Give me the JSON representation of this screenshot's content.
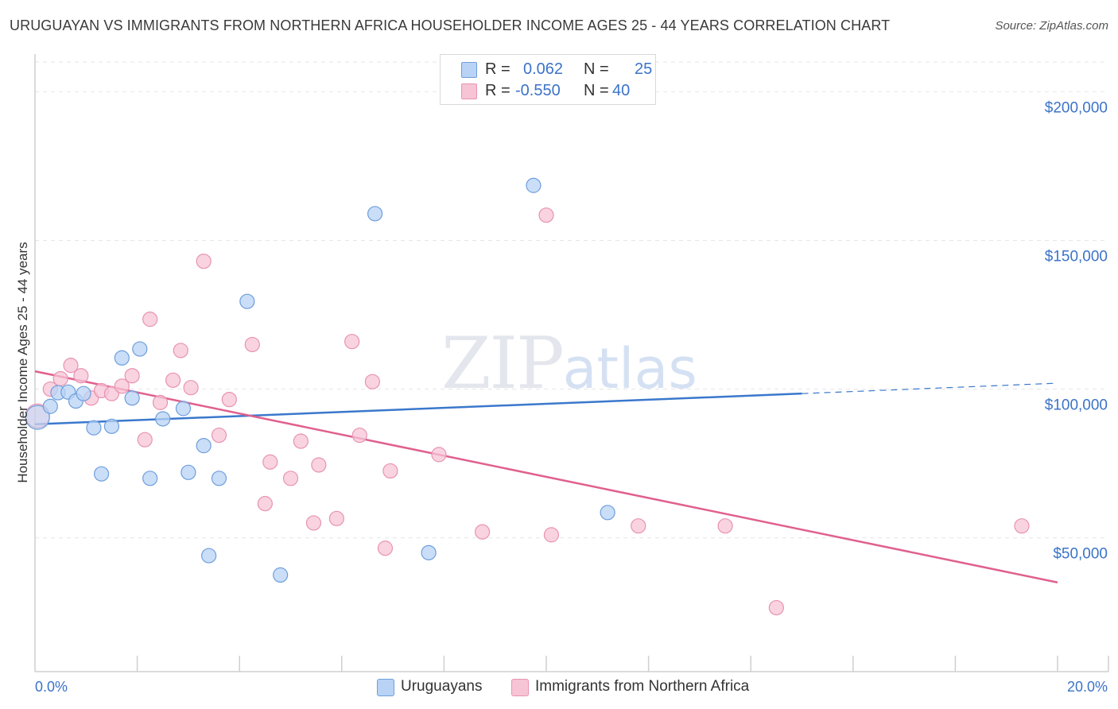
{
  "title": "URUGUAYAN VS IMMIGRANTS FROM NORTHERN AFRICA HOUSEHOLDER INCOME AGES 25 - 44 YEARS CORRELATION CHART",
  "source": "Source: ZipAtlas.com",
  "watermark": {
    "part1": "ZIP",
    "part2": "atlas"
  },
  "colors": {
    "blue_fill": "#b8d3f5",
    "blue_stroke": "#6f9edc",
    "blue_line": "#3a78cc",
    "pink_fill": "#f7c4d5",
    "pink_stroke": "#e893b2",
    "pink_line": "#e0608e",
    "tick_text": "#3b73c8",
    "grid": "#e6e6e6"
  },
  "legend": {
    "rows": [
      {
        "r_label": "R =",
        "r_value": "0.062",
        "n_label": "N =",
        "n_value": "25"
      },
      {
        "r_label": "R =",
        "r_value": "-0.550",
        "n_label": "N =",
        "n_value": "40"
      }
    ]
  },
  "bottom_legend": {
    "series1": "Uruguayans",
    "series2": "Immigrants from Northern Africa"
  },
  "chart_data": {
    "type": "scatter",
    "ylabel": "Householder Income Ages 25 - 44 years",
    "xlabel": "",
    "xlim": [
      0,
      20
    ],
    "ylim": [
      5000,
      210000
    ],
    "x_tick_labels": [
      {
        "value": 0,
        "label": "0.0%"
      },
      {
        "value": 20,
        "label": "20.0%"
      }
    ],
    "y_ticks": [
      {
        "value": 50000,
        "label": "$50,000"
      },
      {
        "value": 100000,
        "label": "$100,000"
      },
      {
        "value": 150000,
        "label": "$150,000"
      },
      {
        "value": 200000,
        "label": "$200,000"
      }
    ],
    "series": [
      {
        "name": "Uruguayans",
        "R": 0.062,
        "N": 25,
        "trend": {
          "x_start": 0,
          "y_start": 88200,
          "x_end": 15,
          "y_end": 98500,
          "dashed_to_x": 20,
          "dashed_y_end": 102000
        },
        "points": [
          {
            "x": 0.05,
            "y": 90500,
            "big": true
          },
          {
            "x": 0.3,
            "y": 94200
          },
          {
            "x": 0.45,
            "y": 98800
          },
          {
            "x": 0.65,
            "y": 99000
          },
          {
            "x": 0.8,
            "y": 96000
          },
          {
            "x": 0.95,
            "y": 98500
          },
          {
            "x": 1.15,
            "y": 87000
          },
          {
            "x": 1.3,
            "y": 71500
          },
          {
            "x": 1.5,
            "y": 87500
          },
          {
            "x": 1.7,
            "y": 110500
          },
          {
            "x": 1.9,
            "y": 97000
          },
          {
            "x": 2.05,
            "y": 113500
          },
          {
            "x": 2.25,
            "y": 70000
          },
          {
            "x": 2.5,
            "y": 90000
          },
          {
            "x": 2.9,
            "y": 93500
          },
          {
            "x": 3.0,
            "y": 72000
          },
          {
            "x": 3.3,
            "y": 81000
          },
          {
            "x": 3.4,
            "y": 44000
          },
          {
            "x": 3.6,
            "y": 70000
          },
          {
            "x": 4.15,
            "y": 129500
          },
          {
            "x": 4.8,
            "y": 37500
          },
          {
            "x": 6.65,
            "y": 159000
          },
          {
            "x": 7.7,
            "y": 45000
          },
          {
            "x": 9.75,
            "y": 168500
          },
          {
            "x": 11.2,
            "y": 58500
          }
        ]
      },
      {
        "name": "Immigrants from Northern Africa",
        "R": -0.55,
        "N": 40,
        "trend": {
          "x_start": 0,
          "y_start": 106000,
          "x_end": 20,
          "y_end": 35000
        },
        "points": [
          {
            "x": 0.05,
            "y": 91000,
            "big": true
          },
          {
            "x": 0.3,
            "y": 100000
          },
          {
            "x": 0.5,
            "y": 103500
          },
          {
            "x": 0.7,
            "y": 108000
          },
          {
            "x": 0.9,
            "y": 104500
          },
          {
            "x": 1.1,
            "y": 97000
          },
          {
            "x": 1.3,
            "y": 99500
          },
          {
            "x": 1.5,
            "y": 98500
          },
          {
            "x": 1.7,
            "y": 101000
          },
          {
            "x": 1.9,
            "y": 104500
          },
          {
            "x": 2.15,
            "y": 83000
          },
          {
            "x": 2.25,
            "y": 123500
          },
          {
            "x": 2.45,
            "y": 95500
          },
          {
            "x": 2.7,
            "y": 103000
          },
          {
            "x": 2.85,
            "y": 113000
          },
          {
            "x": 3.05,
            "y": 100500
          },
          {
            "x": 3.3,
            "y": 143000
          },
          {
            "x": 3.6,
            "y": 84500
          },
          {
            "x": 3.8,
            "y": 96500
          },
          {
            "x": 4.25,
            "y": 115000
          },
          {
            "x": 4.5,
            "y": 61500
          },
          {
            "x": 4.6,
            "y": 75500
          },
          {
            "x": 5.0,
            "y": 70000
          },
          {
            "x": 5.2,
            "y": 82500
          },
          {
            "x": 5.45,
            "y": 55000
          },
          {
            "x": 5.55,
            "y": 74500
          },
          {
            "x": 5.9,
            "y": 56500
          },
          {
            "x": 6.2,
            "y": 116000
          },
          {
            "x": 6.35,
            "y": 84500
          },
          {
            "x": 6.6,
            "y": 102500
          },
          {
            "x": 6.85,
            "y": 46500
          },
          {
            "x": 6.95,
            "y": 72500
          },
          {
            "x": 7.9,
            "y": 78000
          },
          {
            "x": 8.75,
            "y": 52000
          },
          {
            "x": 10.0,
            "y": 158500
          },
          {
            "x": 10.1,
            "y": 51000
          },
          {
            "x": 11.8,
            "y": 54000
          },
          {
            "x": 13.5,
            "y": 54000
          },
          {
            "x": 14.5,
            "y": 26500
          },
          {
            "x": 19.3,
            "y": 54000
          }
        ]
      }
    ]
  }
}
